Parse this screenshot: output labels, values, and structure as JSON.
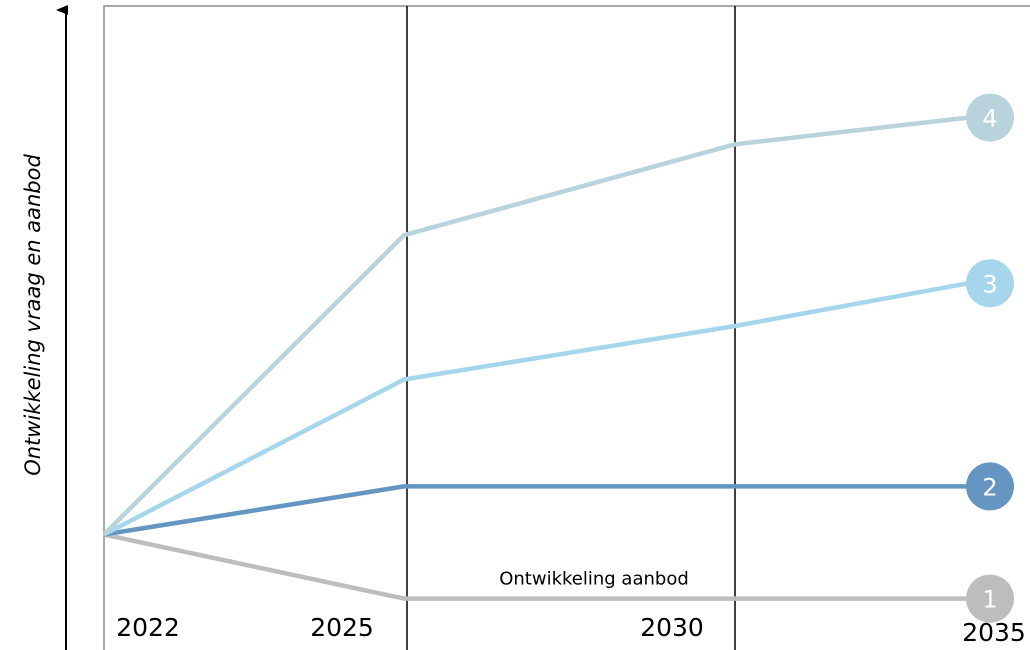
{
  "chart_data": {
    "type": "line",
    "title": "",
    "xlabel": "",
    "ylabel": "Ontwikkeling vraag en aanbod",
    "x": [
      "2022",
      "2025",
      "2030",
      "2035"
    ],
    "series": [
      {
        "label": "1",
        "color": "#bdbdbd",
        "values": [
          0,
          -0.6,
          -0.6,
          -0.6
        ]
      },
      {
        "label": "2",
        "color": "#6596c2",
        "values": [
          0,
          0.45,
          0.45,
          0.45
        ]
      },
      {
        "label": "3",
        "color": "#a6d6ec",
        "values": [
          0,
          1.45,
          1.95,
          2.35
        ]
      },
      {
        "label": "4",
        "color": "#b9d3dc",
        "values": [
          0,
          2.8,
          3.65,
          3.9
        ]
      }
    ],
    "annotations": [
      {
        "text": "Ontwikkeling aanbod",
        "series": "1"
      }
    ],
    "ylim": [
      -0.8,
      5
    ],
    "y_ticks_shown": false,
    "legend": "none",
    "grid": "vertical lines at 2025 and 2030"
  }
}
